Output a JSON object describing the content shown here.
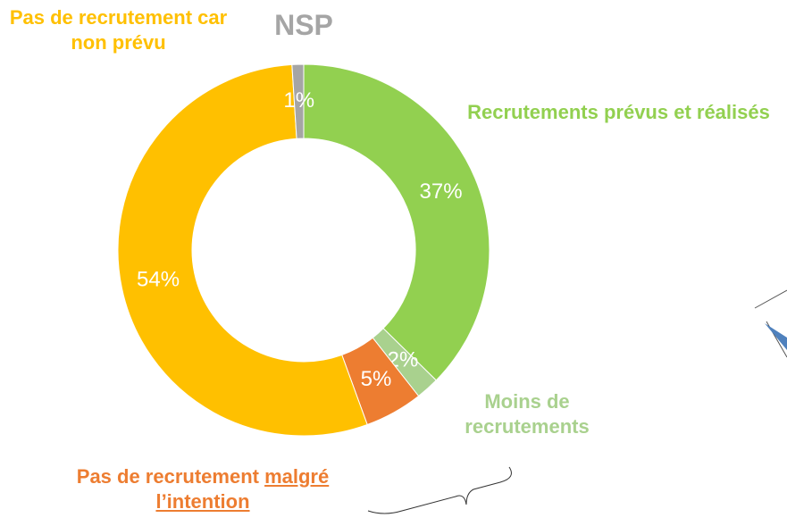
{
  "chart_data": {
    "type": "donut",
    "categories": [
      "Recrutements prévus et réalisés",
      "Moins de recrutements",
      "Pas de recrutement malgré l’intention",
      "Pas de recrutement car non prévu",
      "NSP"
    ],
    "values": [
      37,
      2,
      5,
      54,
      1
    ],
    "value_labels": [
      "37%",
      "2%",
      "5%",
      "54%",
      "1%"
    ],
    "colors": [
      "#92d050",
      "#a9d18e",
      "#ed7d31",
      "#ffc000",
      "#a5a5a5"
    ]
  }
}
